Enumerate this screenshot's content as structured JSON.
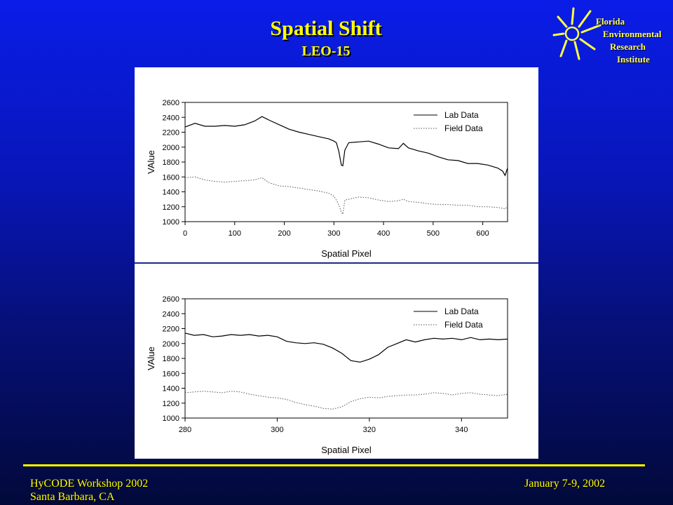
{
  "slide": {
    "title": "Spatial Shift",
    "subtitle": "LEO-15"
  },
  "logo": {
    "lines": [
      "Florida",
      "Environmental",
      "Research",
      "Institute"
    ]
  },
  "footer": {
    "left_line1": "HyCODE Workshop 2002",
    "left_line2": "Santa Barbara, CA",
    "right": "January 7-9, 2002"
  },
  "colors": {
    "title": "#ffff00",
    "background_top": "#0a1de8",
    "background_bottom": "#02093a",
    "chart_background": "#ffffff"
  },
  "chart_data": [
    {
      "type": "line",
      "xlabel": "Spatial Pixel",
      "ylabel": "VAlue",
      "xlim": [
        0,
        650
      ],
      "ylim": [
        1000,
        2600
      ],
      "xticks": [
        0,
        100,
        200,
        300,
        400,
        500,
        600
      ],
      "yticks": [
        1000,
        1200,
        1400,
        1600,
        1800,
        2000,
        2200,
        2400,
        2600
      ],
      "legend_position": "top-right",
      "series": [
        {
          "name": "Lab Data",
          "style": "solid",
          "x": [
            0,
            20,
            40,
            60,
            80,
            100,
            120,
            140,
            155,
            170,
            190,
            210,
            230,
            250,
            270,
            290,
            300,
            305,
            310,
            315,
            318,
            322,
            330,
            350,
            370,
            390,
            410,
            430,
            440,
            450,
            470,
            490,
            510,
            530,
            550,
            570,
            590,
            610,
            630,
            640,
            645,
            650
          ],
          "y": [
            2270,
            2320,
            2280,
            2280,
            2290,
            2280,
            2300,
            2350,
            2410,
            2360,
            2300,
            2240,
            2200,
            2170,
            2140,
            2110,
            2080,
            2060,
            1940,
            1760,
            1750,
            1960,
            2060,
            2070,
            2080,
            2040,
            1990,
            1980,
            2050,
            1990,
            1950,
            1920,
            1870,
            1830,
            1820,
            1780,
            1780,
            1760,
            1720,
            1680,
            1620,
            1720
          ]
        },
        {
          "name": "Field Data",
          "style": "dotted",
          "x": [
            0,
            20,
            40,
            60,
            80,
            100,
            120,
            140,
            155,
            170,
            190,
            210,
            230,
            250,
            270,
            290,
            300,
            305,
            310,
            315,
            318,
            322,
            330,
            350,
            370,
            390,
            410,
            430,
            440,
            450,
            470,
            490,
            510,
            530,
            550,
            570,
            590,
            610,
            630,
            640,
            645,
            650
          ],
          "y": [
            1590,
            1600,
            1560,
            1540,
            1530,
            1540,
            1550,
            1560,
            1590,
            1520,
            1480,
            1470,
            1450,
            1430,
            1410,
            1380,
            1340,
            1290,
            1220,
            1130,
            1100,
            1290,
            1300,
            1330,
            1320,
            1290,
            1270,
            1280,
            1300,
            1270,
            1260,
            1240,
            1230,
            1230,
            1220,
            1220,
            1200,
            1200,
            1190,
            1180,
            1170,
            1200
          ]
        }
      ]
    },
    {
      "type": "line",
      "xlabel": "Spatial Pixel",
      "ylabel": "VAlue",
      "xlim": [
        280,
        350
      ],
      "ylim": [
        1000,
        2600
      ],
      "xticks": [
        280,
        300,
        320,
        340
      ],
      "yticks": [
        1000,
        1200,
        1400,
        1600,
        1800,
        2000,
        2200,
        2400,
        2600
      ],
      "legend_position": "top-right",
      "series": [
        {
          "name": "Lab Data",
          "style": "solid",
          "x": [
            280,
            282,
            284,
            286,
            288,
            290,
            292,
            294,
            296,
            298,
            300,
            302,
            304,
            306,
            308,
            310,
            312,
            314,
            316,
            318,
            320,
            322,
            324,
            326,
            328,
            330,
            332,
            334,
            336,
            338,
            340,
            342,
            344,
            346,
            348,
            350
          ],
          "y": [
            2140,
            2110,
            2120,
            2090,
            2100,
            2120,
            2110,
            2120,
            2100,
            2110,
            2090,
            2030,
            2010,
            2000,
            2010,
            1990,
            1940,
            1870,
            1770,
            1750,
            1790,
            1850,
            1950,
            2000,
            2050,
            2020,
            2050,
            2070,
            2060,
            2070,
            2050,
            2080,
            2050,
            2060,
            2050,
            2060
          ]
        },
        {
          "name": "Field Data",
          "style": "dotted",
          "x": [
            280,
            282,
            284,
            286,
            288,
            290,
            292,
            294,
            296,
            298,
            300,
            302,
            304,
            306,
            308,
            310,
            312,
            314,
            316,
            318,
            320,
            322,
            324,
            326,
            328,
            330,
            332,
            334,
            336,
            338,
            340,
            342,
            344,
            346,
            348,
            350
          ],
          "y": [
            1340,
            1350,
            1360,
            1350,
            1340,
            1360,
            1350,
            1320,
            1300,
            1280,
            1270,
            1250,
            1210,
            1180,
            1160,
            1130,
            1120,
            1150,
            1220,
            1260,
            1280,
            1270,
            1290,
            1300,
            1310,
            1310,
            1320,
            1340,
            1330,
            1310,
            1330,
            1340,
            1320,
            1310,
            1300,
            1320
          ]
        }
      ]
    }
  ]
}
